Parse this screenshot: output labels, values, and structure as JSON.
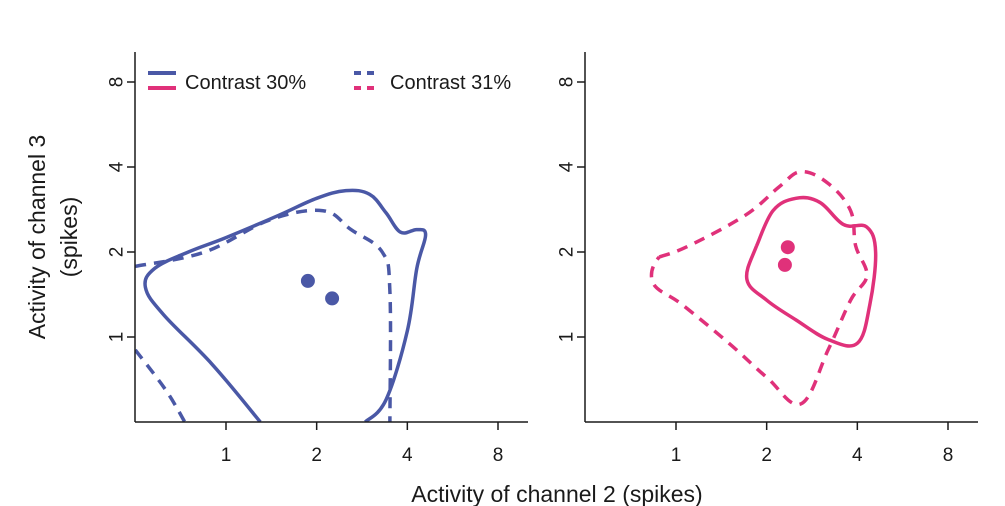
{
  "chart_data": [
    {
      "type": "contour",
      "panel": "left",
      "x_scale": "log2",
      "y_scale": "log2",
      "x_ticks": [
        "1",
        "2",
        "4",
        "8"
      ],
      "y_ticks": [
        "1",
        "2",
        "4",
        "8"
      ],
      "xlim": [
        0.5,
        9
      ],
      "ylim": [
        0.5,
        9
      ],
      "legend_position": "top",
      "series": [
        {
          "name": "Contrast 30%",
          "color": "#4a58a6",
          "style": "solid",
          "contour": [
            [
              1.3,
              0.5
            ],
            [
              0.9,
              0.8
            ],
            [
              0.62,
              1.2
            ],
            [
              0.54,
              1.5
            ],
            [
              0.58,
              1.75
            ],
            [
              0.75,
              2.0
            ],
            [
              1.0,
              2.25
            ],
            [
              1.5,
              2.7
            ],
            [
              2.0,
              3.1
            ],
            [
              2.5,
              3.3
            ],
            [
              3.0,
              3.2
            ],
            [
              3.4,
              2.75
            ],
            [
              3.8,
              2.35
            ],
            [
              4.3,
              2.4
            ],
            [
              4.6,
              2.3
            ],
            [
              4.3,
              1.75
            ],
            [
              4.0,
              1.05
            ],
            [
              3.4,
              0.6
            ],
            [
              2.9,
              0.5
            ]
          ],
          "points": [
            [
              1.87,
              1.58
            ],
            [
              2.25,
              1.37
            ]
          ]
        },
        {
          "name": "Contrast 31%",
          "color": "#4a58a6",
          "style": "dashed",
          "contour": [
            [
              0.5,
              1.78
            ],
            [
              0.85,
              2.0
            ],
            [
              1.4,
              2.6
            ],
            [
              2.1,
              2.8
            ],
            [
              2.6,
              2.4
            ],
            [
              3.3,
              2.0
            ],
            [
              3.5,
              1.45
            ],
            [
              3.5,
              0.5
            ]
          ],
          "contour_extra": [
            [
              0.5,
              0.9
            ],
            [
              0.63,
              0.65
            ],
            [
              0.73,
              0.5
            ]
          ],
          "points": []
        }
      ]
    },
    {
      "type": "contour",
      "panel": "right",
      "x_scale": "log2",
      "y_scale": "log2",
      "x_ticks": [
        "1",
        "2",
        "4",
        "8"
      ],
      "y_ticks": [
        "1",
        "2",
        "4",
        "8"
      ],
      "xlim": [
        0.5,
        9
      ],
      "ylim": [
        0.5,
        9
      ],
      "series": [
        {
          "name": "Contrast 30%",
          "color": "#e0317a",
          "style": "solid",
          "contour": [
            [
              1.85,
              2.1
            ],
            [
              2.1,
              2.8
            ],
            [
              2.5,
              3.1
            ],
            [
              3.0,
              3.0
            ],
            [
              3.6,
              2.5
            ],
            [
              4.3,
              2.45
            ],
            [
              4.6,
              2.0
            ],
            [
              4.4,
              1.3
            ],
            [
              4.0,
              0.95
            ],
            [
              3.2,
              0.98
            ],
            [
              2.5,
              1.15
            ],
            [
              2.0,
              1.35
            ],
            [
              1.72,
              1.6
            ]
          ],
          "points": [
            [
              2.35,
              2.08
            ],
            [
              2.3,
              1.8
            ]
          ]
        },
        {
          "name": "Contrast 31%",
          "color": "#e0317a",
          "style": "dashed",
          "contour": [
            [
              0.88,
              1.92
            ],
            [
              1.1,
              2.1
            ],
            [
              1.7,
              2.7
            ],
            [
              2.2,
              3.4
            ],
            [
              2.6,
              3.85
            ],
            [
              3.2,
              3.5
            ],
            [
              3.8,
              2.8
            ],
            [
              3.95,
              2.1
            ],
            [
              4.3,
              1.65
            ],
            [
              3.8,
              1.35
            ],
            [
              3.2,
              0.9
            ],
            [
              2.6,
              0.58
            ],
            [
              2.0,
              0.72
            ],
            [
              1.5,
              0.95
            ],
            [
              1.05,
              1.3
            ],
            [
              0.84,
              1.55
            ]
          ],
          "points": []
        }
      ]
    }
  ],
  "legend": [
    {
      "label": "Contrast 30%",
      "style": "solid"
    },
    {
      "label": "Contrast 31%",
      "style": "dashed"
    }
  ],
  "y_axis_title": [
    "Activity of channel 3",
    "(spikes)"
  ],
  "x_axis_title": "Activity of channel 2 (spikes)",
  "colors": {
    "blue": "#4a58a6",
    "pink": "#e0317a",
    "axis": "#1a1a1a"
  }
}
